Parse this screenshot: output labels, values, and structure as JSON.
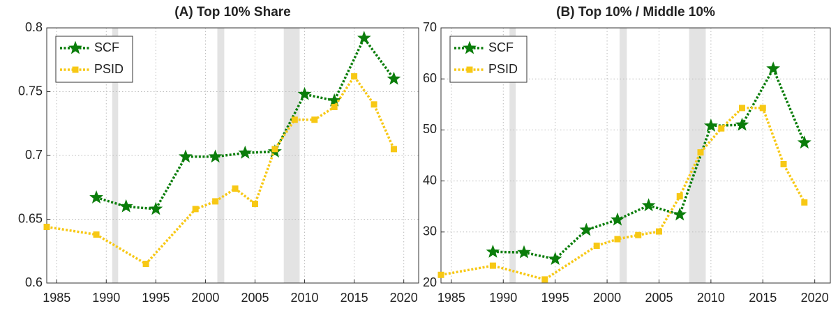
{
  "chart_data": [
    {
      "type": "line",
      "title": "(A) Top 10% Share",
      "xlim": [
        1984,
        2021.5
      ],
      "xticks": [
        1985,
        1990,
        1995,
        2000,
        2005,
        2010,
        2015,
        2020
      ],
      "ylim": [
        0.6,
        0.8
      ],
      "yticks": [
        0.6,
        0.65,
        0.7,
        0.75,
        0.8
      ],
      "grid": true,
      "legend": "upper left",
      "shaded": [
        [
          1990.6,
          1991.2
        ],
        [
          2001.2,
          2001.9
        ],
        [
          2007.9,
          2009.5
        ]
      ],
      "series": [
        {
          "name": "SCF",
          "color": "#0a7d0a",
          "marker": "star",
          "x": [
            1989,
            1992,
            1995,
            1998,
            2001,
            2004,
            2007,
            2010,
            2013,
            2016,
            2019
          ],
          "values": [
            0.667,
            0.66,
            0.658,
            0.699,
            0.699,
            0.702,
            0.703,
            0.748,
            0.743,
            0.792,
            0.76
          ]
        },
        {
          "name": "PSID",
          "color": "#f7c815",
          "marker": "square",
          "x": [
            1984,
            1989,
            1994,
            1999,
            2001,
            2003,
            2005,
            2007,
            2009,
            2011,
            2013,
            2015,
            2017,
            2019
          ],
          "values": [
            0.644,
            0.638,
            0.615,
            0.658,
            0.664,
            0.674,
            0.662,
            0.705,
            0.728,
            0.728,
            0.738,
            0.762,
            0.74,
            0.705
          ]
        }
      ]
    },
    {
      "type": "line",
      "title": "(B) Top 10% / Middle 10%",
      "xlim": [
        1984,
        2021.5
      ],
      "xticks": [
        1985,
        1990,
        1995,
        2000,
        2005,
        2010,
        2015,
        2020
      ],
      "ylim": [
        20,
        70
      ],
      "yticks": [
        20,
        30,
        40,
        50,
        60,
        70
      ],
      "grid": true,
      "legend": "upper left",
      "shaded": [
        [
          1990.6,
          1991.2
        ],
        [
          2001.2,
          2001.9
        ],
        [
          2007.9,
          2009.5
        ]
      ],
      "series": [
        {
          "name": "SCF",
          "color": "#0a7d0a",
          "marker": "star",
          "x": [
            1989,
            1992,
            1995,
            1998,
            2001,
            2004,
            2007,
            2010,
            2013,
            2016,
            2019
          ],
          "values": [
            26.1,
            26.0,
            24.7,
            30.4,
            32.4,
            35.2,
            33.4,
            50.8,
            51.0,
            62.0,
            47.5
          ]
        },
        {
          "name": "PSID",
          "color": "#f7c815",
          "marker": "square",
          "x": [
            1984,
            1989,
            1994,
            1999,
            2001,
            2003,
            2005,
            2007,
            2009,
            2011,
            2013,
            2015,
            2017,
            2019
          ],
          "values": [
            21.6,
            23.4,
            20.7,
            27.3,
            28.6,
            29.4,
            30.1,
            37.0,
            45.6,
            50.3,
            54.3,
            54.3,
            43.3,
            35.8
          ]
        }
      ]
    }
  ]
}
